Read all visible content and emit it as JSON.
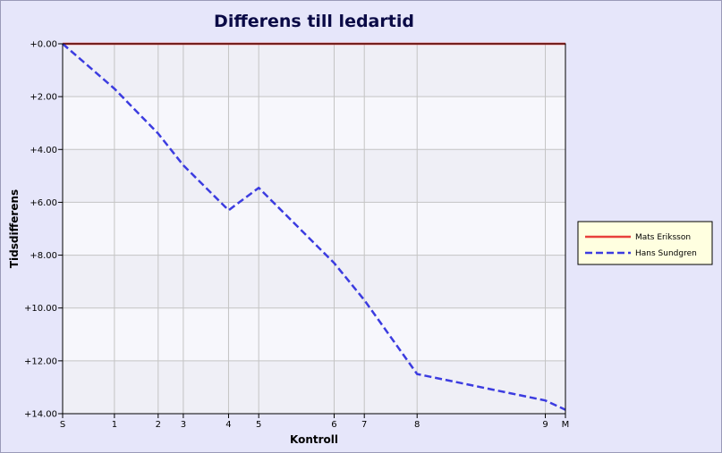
{
  "chart_data": {
    "type": "line",
    "title": "Differens till ledartid",
    "xlabel": "Kontroll",
    "ylabel": "Tidsdifferens",
    "x_ticks": [
      {
        "label": "S",
        "pos": 0
      },
      {
        "label": "1",
        "pos": 1.03
      },
      {
        "label": "2",
        "pos": 1.9
      },
      {
        "label": "3",
        "pos": 2.4
      },
      {
        "label": "4",
        "pos": 3.3
      },
      {
        "label": "5",
        "pos": 3.9
      },
      {
        "label": "6",
        "pos": 5.4
      },
      {
        "label": "7",
        "pos": 6.0
      },
      {
        "label": "8",
        "pos": 7.05
      },
      {
        "label": "9",
        "pos": 9.6
      },
      {
        "label": "M",
        "pos": 10.0
      }
    ],
    "x_range": [
      0,
      10
    ],
    "y_ticks": [
      "+0.00",
      "+2.00",
      "+4.00",
      "+6.00",
      "+8.00",
      "+10.00",
      "+12.00",
      "+14.00"
    ],
    "ylim": [
      0,
      14
    ],
    "y_inverted": true,
    "grid": true,
    "legend_position": "right",
    "series": [
      {
        "name": "Mats Eriksson",
        "color": "#e8403c",
        "style": "solid",
        "values": [
          0,
          0,
          0,
          0,
          0,
          0,
          0,
          0,
          0,
          0,
          0
        ]
      },
      {
        "name": "Hans Sundgren",
        "color": "#3c3ce0",
        "style": "dashed",
        "values": [
          0,
          1.7,
          3.4,
          4.6,
          6.3,
          5.45,
          8.3,
          9.7,
          12.5,
          13.5,
          13.85
        ]
      }
    ]
  }
}
